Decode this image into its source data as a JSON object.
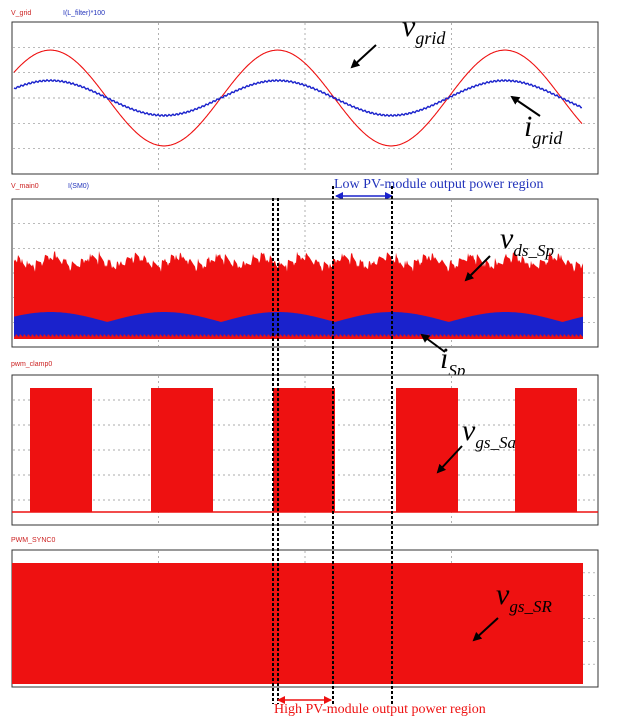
{
  "colors": {
    "red": "#ee1111",
    "blue": "#1a22cc",
    "label_red": "#cc2222",
    "label_blue": "#2233bb",
    "grid": "#909090",
    "frame": "#333333"
  },
  "chart_data": [
    {
      "type": "line",
      "panel": 1,
      "signal_labels": [
        "V_grid",
        "I(L_filter)*100"
      ],
      "series": [
        {
          "name": "V_grid",
          "color": "#ee1111",
          "waveform": "sine",
          "cycles": 2.5,
          "amplitude_rel": 0.63
        },
        {
          "name": "I(L_filter)*100",
          "color": "#1a22cc",
          "waveform": "sine",
          "cycles": 2.5,
          "amplitude_rel": 0.23
        }
      ],
      "annotations": [
        {
          "symbol": "v",
          "subscript": "grid"
        },
        {
          "symbol": "i",
          "subscript": "grid"
        }
      ],
      "grid": true
    },
    {
      "type": "area",
      "panel": 2,
      "signal_labels": [
        "V_main0",
        "I(SM0)"
      ],
      "series": [
        {
          "name": "V_main0",
          "color": "#ee1111",
          "waveform": "switching envelope"
        },
        {
          "name": "I(SM0)",
          "color": "#1a22cc",
          "waveform": "switching envelope"
        }
      ],
      "annotations": [
        {
          "symbol": "v",
          "subscript": "ds_Sp"
        },
        {
          "symbol": "i",
          "subscript": "Sp"
        }
      ],
      "grid": true
    },
    {
      "type": "bar",
      "panel": 3,
      "signal_labels": [
        "pwm_clamp0"
      ],
      "series": [
        {
          "name": "pwm_clamp0",
          "color": "#ee1111",
          "waveform": "gated PWM bursts",
          "bursts": 5
        }
      ],
      "annotations": [
        {
          "symbol": "v",
          "subscript": "gs_Sa"
        }
      ],
      "grid": true
    },
    {
      "type": "area",
      "panel": 4,
      "signal_labels": [
        "PWM_SYNC0"
      ],
      "series": [
        {
          "name": "PWM_SYNC0",
          "color": "#ee1111",
          "waveform": "continuous PWM"
        }
      ],
      "annotations": [
        {
          "symbol": "v",
          "subscript": "gs_SR"
        }
      ],
      "grid": true
    }
  ],
  "regions": {
    "low": "Low PV-module output power region",
    "high": "High PV-module output power region"
  }
}
